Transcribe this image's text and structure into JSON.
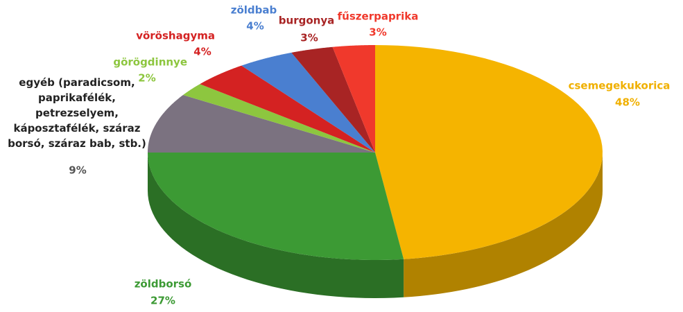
{
  "chart_data": {
    "type": "pie",
    "categories": [
      "csemegekukorica",
      "zöldborsó",
      "egyéb (paradicsom, paprikafélék, petrezselyem, káposztafélék, száraz borsó, száraz bab, stb.)",
      "görögdinnye",
      "vöröshagyma",
      "zöldbab",
      "burgonya",
      "fűszerpaprika"
    ],
    "values": [
      48,
      27,
      9,
      2,
      4,
      4,
      3,
      3
    ],
    "value_labels": [
      "48%",
      "27%",
      "9%",
      "2%",
      "4%",
      "4%",
      "3%",
      "3%"
    ],
    "colors": [
      "#f5b400",
      "#3c9a34",
      "#7b7280",
      "#8dc63f",
      "#d42222",
      "#4a7fd0",
      "#a82424",
      "#f0392c"
    ],
    "label_colors": [
      "#f0b000",
      "#3c9a34",
      "#555555",
      "#8dc63f",
      "#d42222",
      "#4a7fd0",
      "#a82424",
      "#f0392c"
    ]
  }
}
